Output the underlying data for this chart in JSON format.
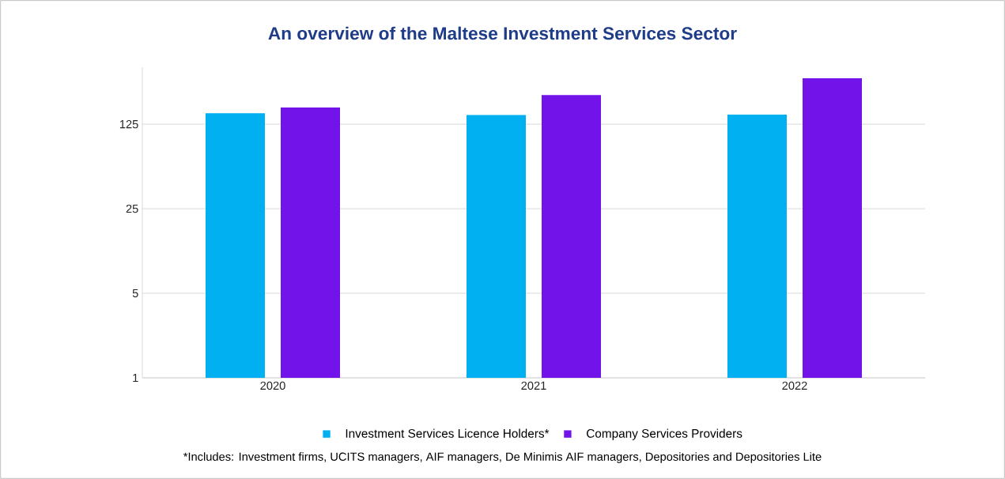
{
  "chart_data": {
    "type": "bar",
    "title": "An overview of the Maltese Investment Services Sector",
    "categories": [
      "2020",
      "2021",
      "2022"
    ],
    "series": [
      {
        "name": "Investment Services Licence Holders*",
        "color": "#00b0f0",
        "values": [
          154,
          149,
          150
        ]
      },
      {
        "name": "Company Services Providers",
        "color": "#7213ea",
        "values": [
          172,
          218,
          300
        ]
      }
    ],
    "log": "y",
    "ylim": [
      1,
      370
    ],
    "yticks": [
      1,
      5,
      25,
      125
    ],
    "grid": "y",
    "legend": "bottom",
    "annotations": [
      "*Includes: Investment firms, UCITS managers, AIF managers, De Minimis AIF managers, Depositories and Depositories Lite"
    ]
  }
}
